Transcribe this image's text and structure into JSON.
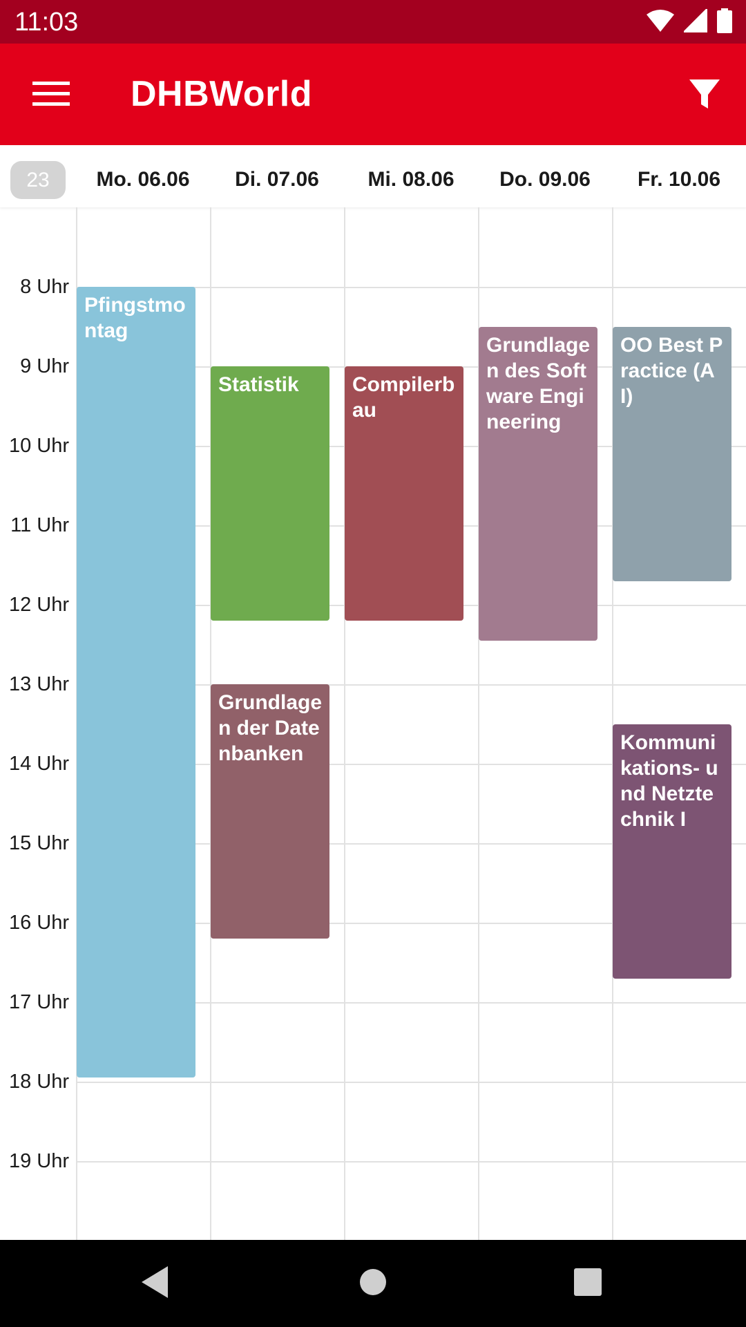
{
  "status_bar": {
    "time": "11:03",
    "icons": [
      "wifi-icon",
      "signal-icon",
      "battery-icon"
    ]
  },
  "app_bar": {
    "title": "DHBWorld",
    "menu_icon": "hamburger-menu-icon",
    "filter_icon": "filter-icon"
  },
  "header": {
    "week_number": "23",
    "days": [
      "Mo. 06.06",
      "Di. 07.06",
      "Mi. 08.06",
      "Do. 09.06",
      "Fr. 10.06"
    ]
  },
  "hours": [
    "8 Uhr",
    "9 Uhr",
    "10 Uhr",
    "11 Uhr",
    "12 Uhr",
    "13 Uhr",
    "14 Uhr",
    "15 Uhr",
    "16 Uhr",
    "17 Uhr",
    "18 Uhr",
    "19 Uhr"
  ],
  "events": [
    {
      "title": "Pfingstmontag",
      "day": 0,
      "start": 8.0,
      "end": 17.95,
      "color": "#89c4da"
    },
    {
      "title": "Statistik",
      "day": 1,
      "start": 9.0,
      "end": 12.2,
      "color": "#6fab4e"
    },
    {
      "title": "Grundlagen der Datenbanken",
      "day": 1,
      "start": 13.0,
      "end": 16.2,
      "color": "#916169"
    },
    {
      "title": "Compilerbau",
      "day": 2,
      "start": 9.0,
      "end": 12.2,
      "color": "#a14e54"
    },
    {
      "title": "Grundlagen des Software Engineering",
      "day": 3,
      "start": 8.5,
      "end": 12.45,
      "color": "#a27b8f"
    },
    {
      "title": "OO Best Practice (AI)",
      "day": 4,
      "start": 8.5,
      "end": 11.7,
      "color": "#8fa1ab"
    },
    {
      "title": "Kommunikations- und Netztechnik I",
      "day": 4,
      "start": 13.5,
      "end": 16.7,
      "color": "#7d5473"
    }
  ],
  "nav_bar": {
    "back_icon": "back-triangle-icon",
    "home_icon": "home-circle-icon",
    "recents_icon": "recents-square-icon"
  },
  "colors": {
    "status_bar": "#a3001f",
    "app_bar": "#e2001a",
    "week_badge": "#d4d4d4"
  }
}
